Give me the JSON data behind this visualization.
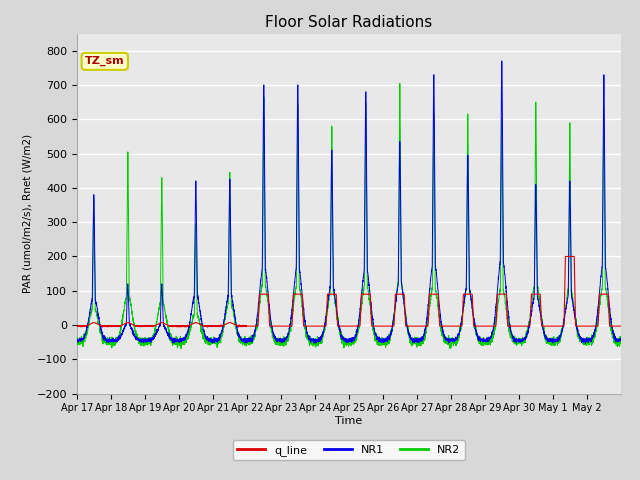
{
  "title": "Floor Solar Radiations",
  "xlabel": "Time",
  "ylabel": "PAR (umol/m2/s), Rnet (W/m2)",
  "ylim": [
    -200,
    850
  ],
  "yticks": [
    -200,
    -100,
    0,
    100,
    200,
    300,
    400,
    500,
    600,
    700,
    800
  ],
  "x_tick_labels": [
    "Apr 17",
    "Apr 18",
    "Apr 19",
    "Apr 20",
    "Apr 21",
    "Apr 22",
    "Apr 23",
    "Apr 24",
    "Apr 25",
    "Apr 26",
    "Apr 27",
    "Apr 28",
    "Apr 29",
    "Apr 30",
    "May 1",
    "May 2"
  ],
  "annotation_text": "TZ_sm",
  "annotation_bg": "#ffffcc",
  "annotation_border": "#cccc00",
  "line_colors": {
    "q_line": "#dd0000",
    "NR1": "#0000ee",
    "NR2": "#00cc00"
  },
  "line_labels": [
    "q_line",
    "NR1",
    "NR2"
  ],
  "background_color": "#d8d8d8",
  "plot_bg": "#e8e8e8",
  "grid_color": "#ffffff",
  "title_fontsize": 11,
  "nr1_peaks": [
    380,
    120,
    120,
    420,
    425,
    700,
    700,
    510,
    680,
    535,
    730,
    495,
    770,
    410,
    420,
    730
  ],
  "nr2_peaks": [
    365,
    505,
    430,
    295,
    445,
    665,
    645,
    580,
    650,
    705,
    615,
    615,
    600,
    650,
    590,
    635
  ],
  "q_peaks": [
    0,
    0,
    0,
    0,
    0,
    90,
    90,
    90,
    90,
    90,
    90,
    90,
    90,
    90,
    200,
    90
  ],
  "night_nr1": -45,
  "night_nr2": -50,
  "night_q": -3
}
